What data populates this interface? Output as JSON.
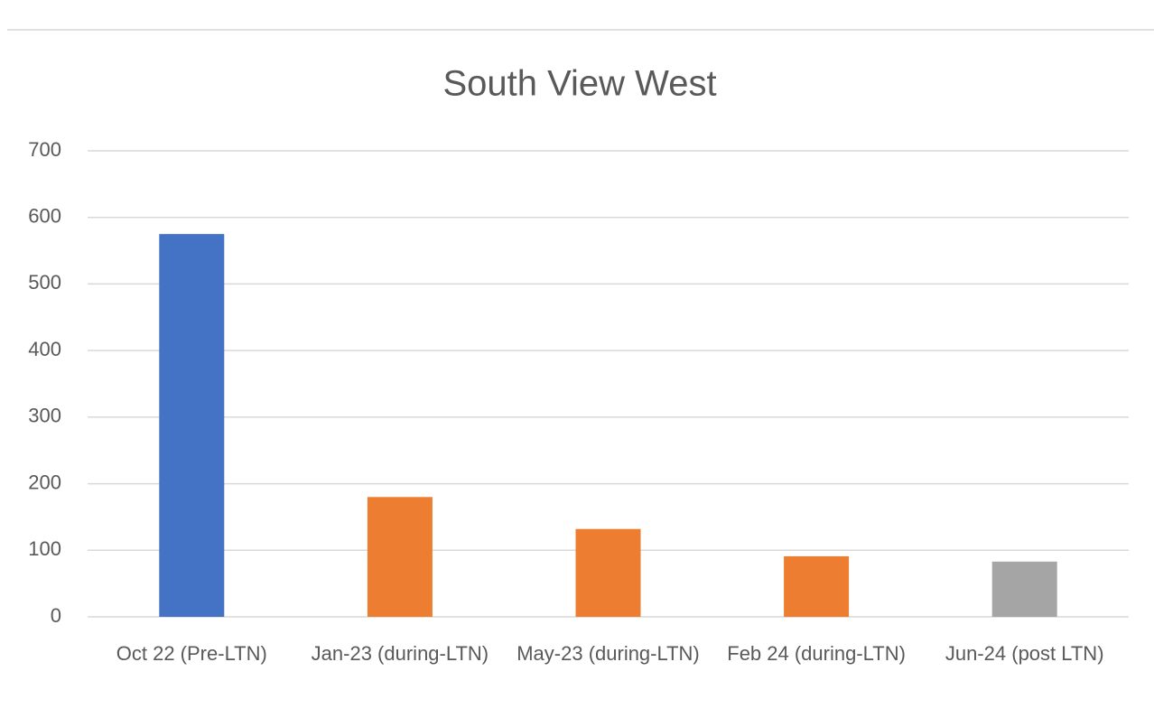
{
  "chart_data": {
    "type": "bar",
    "title": "South View West",
    "categories": [
      "Oct 22 (Pre-LTN)",
      "Jan-23 (during-LTN)",
      "May-23 (during-LTN)",
      "Feb 24 (during-LTN)",
      "Jun-24 (post LTN)"
    ],
    "values": [
      575,
      180,
      132,
      91,
      83
    ],
    "colors": [
      "#4472c4",
      "#ed7d31",
      "#ed7d31",
      "#ed7d31",
      "#a5a5a5"
    ],
    "ylim": [
      0,
      700
    ],
    "yticks": [
      0,
      100,
      200,
      300,
      400,
      500,
      600,
      700
    ],
    "grid": true
  }
}
